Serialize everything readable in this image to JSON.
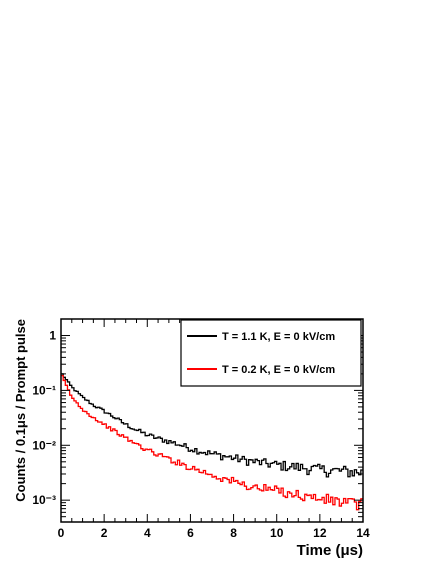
{
  "chart_data": {
    "type": "line",
    "step": true,
    "bin_width": 0.1,
    "xlabel": "Time (μs)",
    "ylabel": "Counts / 0.1μs / Prompt pulse",
    "xlim": [
      0,
      14
    ],
    "ylim": [
      0.0004,
      2
    ],
    "yscale": "log",
    "x_ticks": [
      0,
      2,
      4,
      6,
      8,
      10,
      12,
      14
    ],
    "x_tick_labels": [
      "0",
      "2",
      "4",
      "6",
      "8",
      "10",
      "12",
      "14"
    ],
    "y_ticks": [
      0.001,
      0.01,
      0.1,
      1
    ],
    "y_tick_labels": [
      "10⁻³",
      "10⁻²",
      "10⁻¹",
      "1"
    ],
    "grid": false,
    "legend": {
      "placement": "top-right"
    },
    "series": [
      {
        "name": "T = 1.1 K, E = 0 kV/cm",
        "color": "#000000",
        "x": [
          0,
          0.5,
          1,
          1.5,
          2,
          2.5,
          3,
          3.5,
          4,
          4.5,
          5,
          5.5,
          6,
          6.5,
          7,
          7.5,
          8,
          8.5,
          9,
          9.5,
          10,
          10.5,
          11,
          11.5,
          12,
          12.5,
          13,
          13.5,
          14
        ],
        "y": [
          0.21,
          0.115,
          0.075,
          0.054,
          0.042,
          0.032,
          0.024,
          0.019,
          0.0155,
          0.0133,
          0.0118,
          0.0103,
          0.0088,
          0.0078,
          0.007,
          0.0064,
          0.0059,
          0.0054,
          0.005,
          0.0047,
          0.0044,
          0.0042,
          0.004,
          0.0038,
          0.0036,
          0.0035,
          0.0034,
          0.0033,
          0.0032
        ]
      },
      {
        "name": "T = 0.2 K, E = 0 kV/cm",
        "color": "#ff0000",
        "x": [
          0,
          0.5,
          1,
          1.5,
          2,
          2.5,
          3,
          3.5,
          4,
          4.5,
          5,
          5.5,
          6,
          6.5,
          7,
          7.5,
          8,
          8.5,
          9,
          9.5,
          10,
          10.5,
          11,
          11.5,
          12,
          12.5,
          13,
          13.5,
          14
        ],
        "y": [
          0.2,
          0.075,
          0.045,
          0.032,
          0.024,
          0.018,
          0.0135,
          0.0105,
          0.0082,
          0.0068,
          0.0057,
          0.0047,
          0.004,
          0.0034,
          0.0029,
          0.0025,
          0.0022,
          0.0019,
          0.0017,
          0.0016,
          0.0015,
          0.0014,
          0.00125,
          0.00115,
          0.00107,
          0.001,
          0.00093,
          0.00088,
          0.00083
        ]
      }
    ]
  }
}
